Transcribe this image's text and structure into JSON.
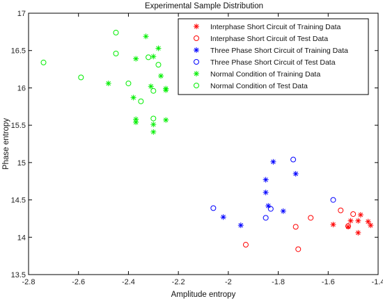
{
  "chart_data": {
    "type": "scatter",
    "title": "Experimental Sample Distribution",
    "xlabel": "Amplitude entropy",
    "ylabel": "Phase entropy",
    "xlim": [
      -2.8,
      -1.4
    ],
    "ylim": [
      13.5,
      17
    ],
    "xticks": [
      "-2.8",
      "-2.6",
      "-2.4",
      "-2.2",
      "-2",
      "-1.8",
      "-1.6",
      "-1.4"
    ],
    "yticks": [
      "13.5",
      "14",
      "14.5",
      "15",
      "15.5",
      "16",
      "16.5",
      "17"
    ],
    "grid": false,
    "legend_position": "top-right",
    "series": [
      {
        "name": "Interphase Short Circuit of Training Data",
        "marker": "star",
        "color": "#ff0000",
        "points": [
          [
            -1.58,
            14.17
          ],
          [
            -1.52,
            14.14
          ],
          [
            -1.51,
            14.22
          ],
          [
            -1.48,
            14.22
          ],
          [
            -1.47,
            14.3
          ],
          [
            -1.48,
            14.06
          ],
          [
            -1.44,
            14.21
          ],
          [
            -1.43,
            14.16
          ]
        ]
      },
      {
        "name": "Interphase Short Circuit of Test Data",
        "marker": "circle",
        "color": "#ff0000",
        "points": [
          [
            -1.93,
            13.9
          ],
          [
            -1.73,
            14.14
          ],
          [
            -1.72,
            13.84
          ],
          [
            -1.67,
            14.26
          ],
          [
            -1.55,
            14.36
          ],
          [
            -1.52,
            14.15
          ],
          [
            -1.5,
            14.31
          ]
        ]
      },
      {
        "name": "Three Phase Short Circuit of Training Data",
        "marker": "star",
        "color": "#0000ff",
        "points": [
          [
            -2.02,
            14.27
          ],
          [
            -1.95,
            14.16
          ],
          [
            -1.85,
            14.77
          ],
          [
            -1.85,
            14.6
          ],
          [
            -1.84,
            14.42
          ],
          [
            -1.82,
            15.01
          ],
          [
            -1.78,
            14.35
          ],
          [
            -1.73,
            14.85
          ]
        ]
      },
      {
        "name": "Three Phase Short Circuit of Test Data",
        "marker": "circle",
        "color": "#0000ff",
        "points": [
          [
            -2.06,
            14.39
          ],
          [
            -1.85,
            14.26
          ],
          [
            -1.83,
            14.38
          ],
          [
            -1.74,
            15.04
          ],
          [
            -1.58,
            14.5
          ]
        ]
      },
      {
        "name": "Normal Condition of Training Data",
        "marker": "star",
        "color": "#00ee00",
        "points": [
          [
            -2.48,
            16.06
          ],
          [
            -2.38,
            15.87
          ],
          [
            -2.37,
            16.39
          ],
          [
            -2.37,
            15.58
          ],
          [
            -2.37,
            15.54
          ],
          [
            -2.33,
            16.69
          ],
          [
            -2.31,
            16.02
          ],
          [
            -2.3,
            16.42
          ],
          [
            -2.3,
            15.51
          ],
          [
            -2.3,
            15.41
          ],
          [
            -2.28,
            16.53
          ],
          [
            -2.27,
            16.16
          ],
          [
            -2.25,
            15.99
          ],
          [
            -2.25,
            15.97
          ],
          [
            -2.25,
            15.57
          ]
        ]
      },
      {
        "name": "Normal Condition of Test Data",
        "marker": "circle",
        "color": "#00ee00",
        "points": [
          [
            -2.74,
            16.34
          ],
          [
            -2.59,
            16.14
          ],
          [
            -2.45,
            16.74
          ],
          [
            -2.45,
            16.46
          ],
          [
            -2.4,
            16.06
          ],
          [
            -2.35,
            15.82
          ],
          [
            -2.32,
            16.41
          ],
          [
            -2.3,
            15.96
          ],
          [
            -2.28,
            16.31
          ],
          [
            -2.3,
            15.59
          ]
        ]
      }
    ]
  }
}
